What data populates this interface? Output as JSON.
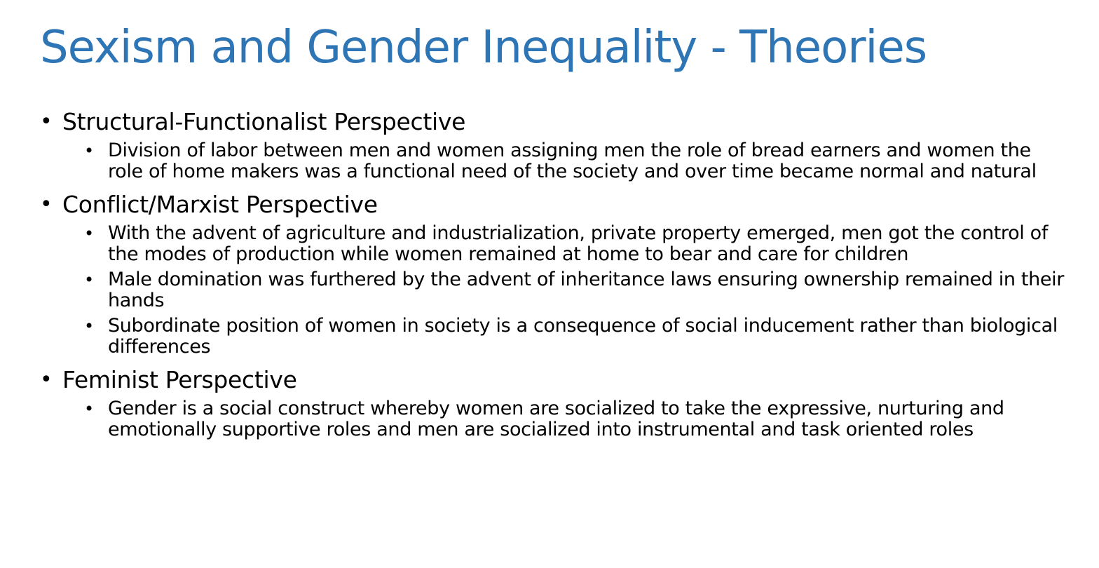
{
  "slide": {
    "title": "Sexism and Gender Inequality - Theories",
    "title_color": "#2e75b6",
    "sections": [
      {
        "heading": "Structural-Functionalist Perspective",
        "points": [
          "Division of labor between men and women assigning men the role of bread earners and women the role of home makers was a functional need of the society and over time became normal and natural"
        ]
      },
      {
        "heading": "Conflict/Marxist Perspective",
        "points": [
          "With the advent of agriculture and industrialization, private property emerged, men got the control of the modes of production while women remained at home to bear and care for children",
          "Male domination was furthered by the advent of inheritance laws ensuring ownership remained in their hands",
          "Subordinate position of women in society is a consequence of social inducement rather than biological differences"
        ]
      },
      {
        "heading": "Feminist Perspective",
        "points": [
          "Gender is a social construct whereby women are socialized to take the expressive, nurturing and emotionally supportive roles and men are socialized into instrumental and task oriented roles"
        ]
      }
    ]
  }
}
